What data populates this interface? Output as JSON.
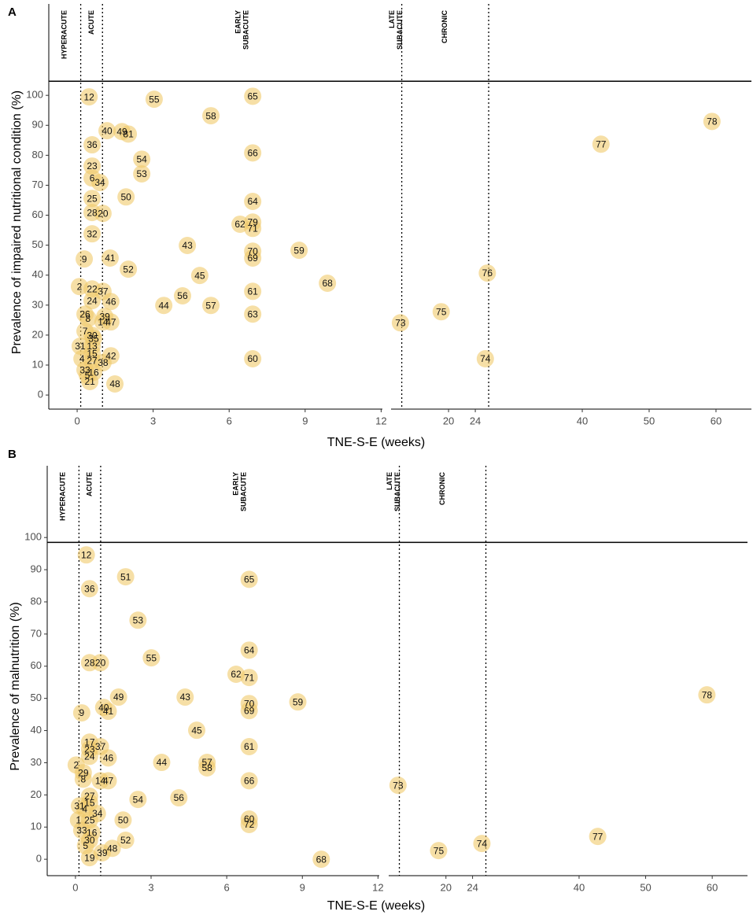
{
  "chart_data": [
    {
      "type": "scatter",
      "panel_label": "A",
      "ylabel": "Prevalence of impaired nutritional condition (%)",
      "xlabel": "TNE-S-E (weeks)",
      "ylim": [
        -4.7,
        130.5
      ],
      "yticks": [
        0,
        10,
        20,
        30,
        40,
        50,
        60,
        70,
        80,
        90,
        100
      ],
      "phase_line": 104.7,
      "panels": [
        {
          "xlim": [
            -1.12,
            12.05
          ],
          "xticks": [
            0,
            3,
            6,
            9,
            12
          ],
          "boundaries": [
            0.14,
            1
          ],
          "phases": [
            {
              "lines": [
                "HYPERACUTE"
              ]
            },
            {
              "lines": [
                "ACUTE"
              ]
            },
            {
              "lines": [
                "EARLY",
                "SUBACUTE"
              ]
            }
          ],
          "series": [
            {
              "color": "#f0c96b",
              "labels": [
                12,
                55,
                65,
                58,
                40,
                49,
                81,
                36,
                66,
                54,
                23,
                53,
                6,
                34,
                50,
                25,
                64,
                28,
                20,
                62,
                79,
                71,
                32,
                43,
                59,
                70,
                69,
                9,
                41,
                52,
                45,
                68,
                2,
                22,
                37,
                61,
                56,
                46,
                24,
                44,
                57,
                63,
                26,
                39,
                8,
                14,
                47,
                7,
                30,
                35,
                31,
                13,
                15,
                42,
                60,
                4,
                27,
                38,
                33,
                16,
                5,
                21,
                48
              ],
              "x": [
                0.47,
                3.04,
                6.93,
                5.28,
                1.18,
                1.77,
                2.02,
                0.59,
                6.93,
                2.55,
                0.59,
                2.55,
                0.59,
                0.9,
                1.93,
                0.59,
                6.93,
                0.59,
                1.02,
                6.43,
                6.93,
                6.93,
                0.59,
                4.35,
                8.76,
                6.93,
                6.93,
                0.28,
                1.3,
                2.02,
                4.84,
                9.88,
                0.09,
                0.59,
                1.02,
                6.93,
                4.16,
                1.33,
                0.59,
                3.42,
                5.28,
                6.93,
                0.31,
                1.09,
                0.43,
                1.02,
                1.33,
                0.31,
                0.59,
                0.65,
                0.12,
                0.59,
                0.59,
                1.33,
                6.93,
                0.19,
                0.59,
                1.02,
                0.31,
                0.65,
                0.4,
                0.5,
                1.49
              ],
              "values": [
                99.5,
                98.7,
                99.7,
                93.2,
                88.2,
                87.9,
                87.1,
                83.5,
                80.8,
                78.7,
                76.4,
                73.8,
                72.4,
                70.9,
                66.1,
                65.6,
                64.6,
                60.9,
                60.6,
                57,
                57.7,
                55.6,
                53.8,
                49.9,
                48.3,
                48,
                45.7,
                45.4,
                45.7,
                42,
                39.9,
                37.3,
                36.2,
                35.4,
                34.6,
                34.6,
                33.1,
                31.2,
                31.5,
                29.9,
                29.9,
                27,
                27,
                26.2,
                25.5,
                24.4,
                24.4,
                21.3,
                19.9,
                18.9,
                16.3,
                16.3,
                13.9,
                13.1,
                12.1,
                12.1,
                11.5,
                10.8,
                8.4,
                7.6,
                6.6,
                4.5,
                3.7
              ]
            }
          ]
        },
        {
          "xlim": [
            11.4,
            65.3
          ],
          "xticks": [
            20,
            24,
            40,
            50,
            60
          ],
          "boundaries": [
            13,
            26
          ],
          "phases": [
            {
              "lines": [
                "LATE",
                "SUBACUTE"
              ]
            },
            {
              "lines": [
                "CHRONIC"
              ]
            }
          ],
          "series": [
            {
              "color": "#f0c96b",
              "labels": [
                78,
                77,
                76,
                75,
                73,
                74
              ],
              "x": [
                59.4,
                42.8,
                25.8,
                18.9,
                12.8,
                25.5
              ],
              "values": [
                91.3,
                83.7,
                40.7,
                27.8,
                24.1,
                12.1
              ]
            }
          ]
        }
      ]
    },
    {
      "type": "scatter",
      "panel_label": "B",
      "ylabel": "Prevalence of malnutrition (%)",
      "xlabel": "TNE-S-E (weeks)",
      "ylim": [
        -5.1,
        122.3
      ],
      "yticks": [
        0,
        10,
        20,
        30,
        40,
        50,
        60,
        70,
        80,
        90,
        100
      ],
      "phase_line": 98.5,
      "panels": [
        {
          "xlim": [
            -1.12,
            12.05
          ],
          "xticks": [
            0,
            3,
            6,
            9,
            12
          ],
          "boundaries": [
            0.14,
            1
          ],
          "phases": [
            {
              "lines": [
                "HYPERACUTE"
              ]
            },
            {
              "lines": [
                "ACUTE"
              ]
            },
            {
              "lines": [
                "EARLY",
                "SUBACUTE"
              ]
            }
          ],
          "series": [
            {
              "color": "#f0c96b",
              "labels": [
                12,
                51,
                65,
                36,
                53,
                64,
                55,
                28,
                20,
                62,
                71,
                49,
                43,
                70,
                59,
                40,
                41,
                69,
                9,
                45,
                17,
                61,
                23,
                37,
                24,
                46,
                44,
                57,
                58,
                2,
                29,
                66,
                14,
                47,
                8,
                56,
                54,
                27,
                15,
                31,
                4,
                34,
                50,
                60,
                72,
                1,
                25,
                33,
                16,
                52,
                30,
                5,
                48,
                39,
                19,
                68
              ],
              "x": [
                0.43,
                1.99,
                6.89,
                0.56,
                2.48,
                6.89,
                3.01,
                0.56,
                0.99,
                6.37,
                6.89,
                1.71,
                4.35,
                6.89,
                8.82,
                1.12,
                1.3,
                6.89,
                0.25,
                4.81,
                0.56,
                6.89,
                0.56,
                0.99,
                0.56,
                1.3,
                3.42,
                5.22,
                5.22,
                0.03,
                0.31,
                6.89,
                0.99,
                1.3,
                0.31,
                4.1,
                2.48,
                0.56,
                0.56,
                0.16,
                0.37,
                0.87,
                1.89,
                6.89,
                6.89,
                0.12,
                0.56,
                0.25,
                0.65,
                1.99,
                0.56,
                0.4,
                1.46,
                1.06,
                0.56,
                9.75
              ],
              "values": [
                94.6,
                87.8,
                87,
                84.1,
                74.3,
                65,
                62.6,
                61.1,
                61.1,
                57.5,
                56.5,
                50.4,
                50.4,
                48.4,
                48.9,
                47.2,
                46,
                46.2,
                45.5,
                40.1,
                36.4,
                35,
                34.2,
                35,
                32,
                31.5,
                30.1,
                30.1,
                28.4,
                29.3,
                26.9,
                24.4,
                24.4,
                24.4,
                24.9,
                19.1,
                18.6,
                19.6,
                17.6,
                16.6,
                15.6,
                14.2,
                12.2,
                12.5,
                10.8,
                12.2,
                12.2,
                9,
                8.3,
                5.9,
                5.9,
                4.2,
                3.4,
                2,
                0.5,
                0
              ]
            }
          ]
        },
        {
          "xlim": [
            11.4,
            65.3
          ],
          "xticks": [
            20,
            24,
            40,
            50,
            60
          ],
          "boundaries": [
            13,
            26
          ],
          "phases": [
            {
              "lines": [
                "LATE",
                "SUBACUTE"
              ]
            },
            {
              "lines": [
                "CHRONIC"
              ]
            }
          ],
          "series": [
            {
              "color": "#f0c96b",
              "labels": [
                78,
                73,
                77,
                74,
                75
              ],
              "x": [
                59.2,
                12.8,
                42.8,
                25.4,
                18.9
              ],
              "values": [
                51.1,
                23,
                7.1,
                4.9,
                2.7
              ]
            }
          ]
        }
      ]
    }
  ]
}
